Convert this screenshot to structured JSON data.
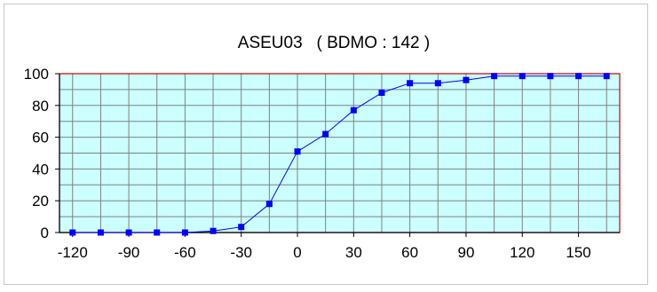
{
  "chart_data": {
    "type": "line",
    "title": "ASEU03   ( BDMO : 142 )",
    "xlabel": "",
    "ylabel": "",
    "xlim": [
      -127,
      172
    ],
    "ylim": [
      0,
      100
    ],
    "x_ticks": [
      -120,
      -90,
      -60,
      -30,
      0,
      30,
      60,
      90,
      120,
      150
    ],
    "y_ticks": [
      0,
      20,
      40,
      60,
      80,
      100
    ],
    "grid": true,
    "plot_background": "#ccffff",
    "plot_border_color": "#cc0000",
    "grid_color": "#808080",
    "series_color": "#0000ff",
    "series": [
      {
        "x": [
          -120,
          -105,
          -90,
          -75,
          -60,
          -45,
          -30,
          -15,
          0,
          15,
          30,
          45,
          60,
          75,
          90,
          105,
          120,
          135,
          150,
          165
        ],
        "values": [
          0,
          0,
          0,
          0,
          0,
          1,
          3.5,
          18,
          51,
          62,
          77,
          88,
          94,
          94,
          96,
          98.5,
          98.5,
          98.5,
          98.5,
          98.5
        ]
      }
    ]
  }
}
